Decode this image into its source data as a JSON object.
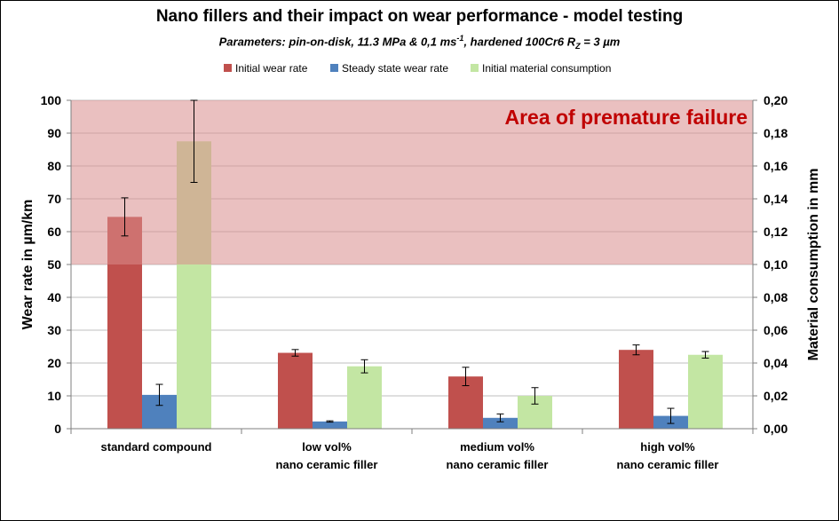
{
  "chart_data": {
    "type": "bar",
    "title": "Nano fillers and their impact on wear performance - model testing",
    "subtitle": {
      "prefix": "Parameters: pin-on-disk, 11.3 MPa & 0,1 ms",
      "exp": "-1",
      "middle": ", hardened 100Cr6 R",
      "sub": "Z",
      "suffix": " = 3 µm"
    },
    "categories": [
      [
        "standard compound"
      ],
      [
        "low vol%",
        "nano ceramic filler"
      ],
      [
        "medium vol%",
        "nano ceramic filler"
      ],
      [
        "high vol%",
        "nano ceramic filler"
      ]
    ],
    "series": [
      {
        "name": "Initial wear rate",
        "axis": "left",
        "color": "#c0504d",
        "values": [
          64.5,
          23.1,
          15.9,
          24.0
        ],
        "errors": [
          5.8,
          1.0,
          2.8,
          1.5
        ]
      },
      {
        "name": "Steady state wear rate",
        "axis": "left",
        "color": "#4f81bd",
        "values": [
          10.3,
          2.2,
          3.3,
          3.9
        ],
        "errors": [
          3.2,
          0.2,
          1.2,
          2.3
        ]
      },
      {
        "name": "Initial material consumption",
        "axis": "right",
        "color": "#c3e6a3",
        "values": [
          0.175,
          0.038,
          0.02,
          0.045
        ],
        "errors": [
          0.025,
          0.004,
          0.005,
          0.002
        ]
      }
    ],
    "ylabel": "Wear rate in µm/km",
    "y2label": "Material consumption in mm",
    "ylim": [
      0,
      100
    ],
    "y2lim": [
      0,
      0.2
    ],
    "yticks": [
      "0",
      "10",
      "20",
      "30",
      "40",
      "50",
      "60",
      "70",
      "80",
      "90",
      "100"
    ],
    "y2ticks": [
      "0,00",
      "0,02",
      "0,04",
      "0,06",
      "0,08",
      "0,10",
      "0,12",
      "0,14",
      "0,16",
      "0,18",
      "0,20"
    ],
    "annotation": {
      "text": "Area of premature failure",
      "from": 50,
      "to": 100,
      "color": "#d98c8c"
    },
    "legend_position": "top"
  }
}
